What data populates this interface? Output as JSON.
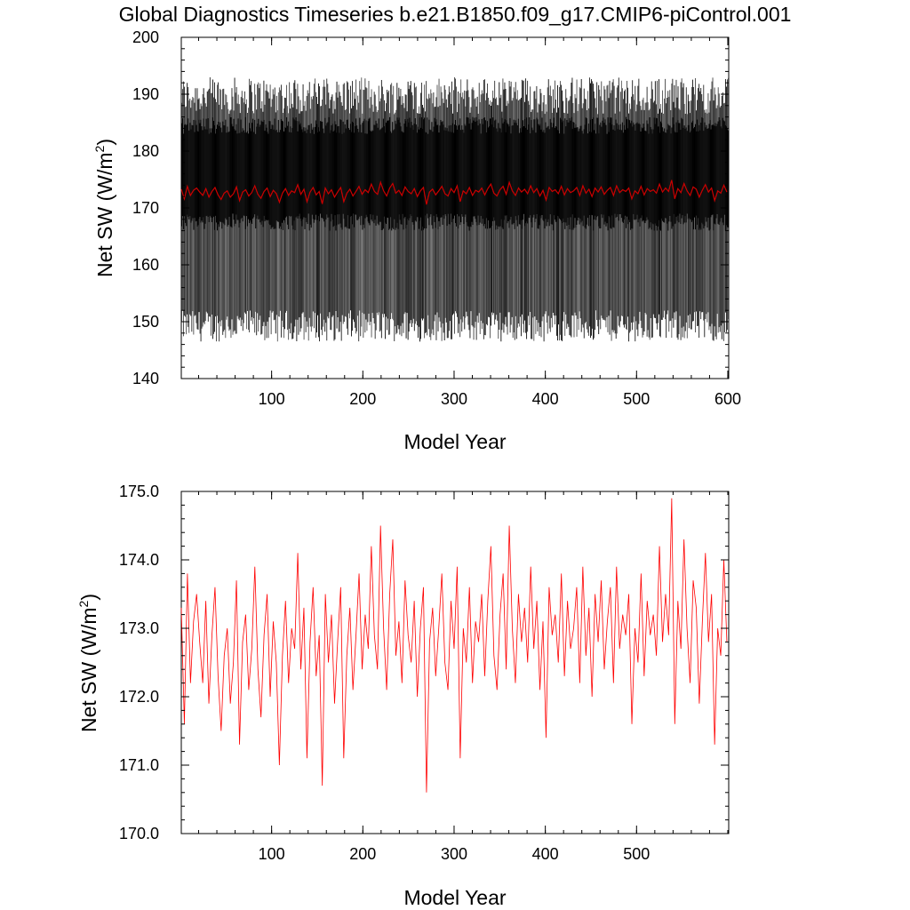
{
  "title": "Global Diagnostics Timeseries b.e21.B1850.f09_g17.CMIP6-piControl.001",
  "chart_data": [
    {
      "type": "line",
      "xlabel": "Model Year",
      "ylabel_main": "Net SW (W/m",
      "ylabel_sup": "2",
      "ylabel_end": ")",
      "xlim": [
        1,
        601
      ],
      "ylim": [
        140,
        200
      ],
      "xticks": [
        100,
        200,
        300,
        400,
        500,
        600
      ],
      "xtick_labels": [
        "100",
        "200",
        "300",
        "400",
        "500",
        "600"
      ],
      "yticks": [
        140,
        150,
        160,
        170,
        180,
        190,
        200
      ],
      "ytick_labels": [
        "140",
        "150",
        "160",
        "170",
        "180",
        "190",
        "200"
      ],
      "series": [
        {
          "kind": "monthly",
          "color": "#000000",
          "description_values": {
            "annual_min_range": [
              146,
              152
            ],
            "annual_max_range": [
              186,
              193
            ]
          }
        },
        {
          "kind": "annual",
          "color": "#cc0000",
          "values": [
            173.3,
            171.6,
            173.8,
            172.2,
            173.1,
            173.5,
            172.8,
            172.2,
            173.4,
            171.9,
            172.9,
            173.6,
            172.3,
            171.5,
            172.6,
            173.0,
            171.9,
            172.5,
            173.7,
            171.3,
            172.8,
            173.2,
            172.1,
            172.7,
            173.9,
            172.4,
            171.7,
            172.9,
            173.5,
            172.0,
            173.1,
            172.5,
            171.0,
            172.6,
            173.4,
            172.2,
            173.0,
            172.7,
            174.1,
            172.4,
            173.3,
            171.1,
            172.8,
            173.6,
            172.3,
            172.9,
            170.7,
            173.5,
            172.5,
            173.2,
            171.9,
            172.8,
            173.6,
            171.1,
            172.6,
            173.3,
            172.1,
            172.9,
            173.8,
            172.4,
            173.2,
            172.7,
            174.2,
            172.9,
            172.4,
            174.5,
            173.0,
            172.1,
            173.5,
            174.3,
            172.6,
            173.1,
            172.2,
            173.7,
            172.9,
            172.5,
            173.4,
            172.0,
            173.0,
            173.6,
            170.6,
            172.8,
            173.3,
            172.3,
            173.0,
            173.8,
            172.5,
            172.1,
            173.4,
            172.7,
            173.9,
            171.1,
            173.0,
            172.5,
            173.6,
            172.2,
            173.1,
            172.8,
            173.5,
            172.3,
            173.4,
            174.2,
            172.6,
            172.1,
            173.2,
            173.8,
            172.4,
            174.5,
            173.0,
            172.2,
            173.5,
            172.8,
            173.3,
            172.5,
            173.9,
            172.7,
            173.4,
            172.1,
            173.1,
            171.4,
            173.6,
            172.9,
            173.2,
            172.5,
            173.8,
            172.3,
            173.4,
            172.7,
            173.0,
            173.6,
            172.2,
            173.9,
            172.6,
            173.3,
            172.0,
            173.5,
            172.8,
            173.7,
            172.4,
            173.1,
            173.6,
            172.2,
            173.9,
            172.7,
            173.2,
            172.9,
            173.5,
            171.6,
            173.0,
            172.5,
            173.8,
            172.3,
            173.4,
            172.9,
            173.2,
            172.6,
            174.2,
            172.8,
            173.5,
            172.9,
            174.9,
            171.6,
            173.4,
            172.7,
            174.3,
            173.0,
            172.2,
            173.7,
            173.3,
            171.9,
            173.1,
            174.1,
            172.8,
            173.5,
            171.3,
            173.0,
            172.6,
            174.0,
            172.8
          ]
        }
      ]
    },
    {
      "type": "line",
      "xlabel": "Model Year",
      "ylabel_main": "Net SW (W/m",
      "ylabel_sup": "2",
      "ylabel_end": ")",
      "xlim": [
        1,
        601
      ],
      "ylim": [
        170,
        175
      ],
      "xticks": [
        100,
        200,
        300,
        400,
        500
      ],
      "xtick_labels": [
        "100",
        "200",
        "300",
        "400",
        "500"
      ],
      "yticks": [
        170,
        171,
        172,
        173,
        174,
        175
      ],
      "ytick_labels": [
        "170.0",
        "171.0",
        "172.0",
        "173.0",
        "174.0",
        "175.0"
      ],
      "series": [
        {
          "kind": "annual",
          "color": "#ff0000",
          "values_ref": "chart_data.0.series.1.values"
        }
      ]
    }
  ]
}
